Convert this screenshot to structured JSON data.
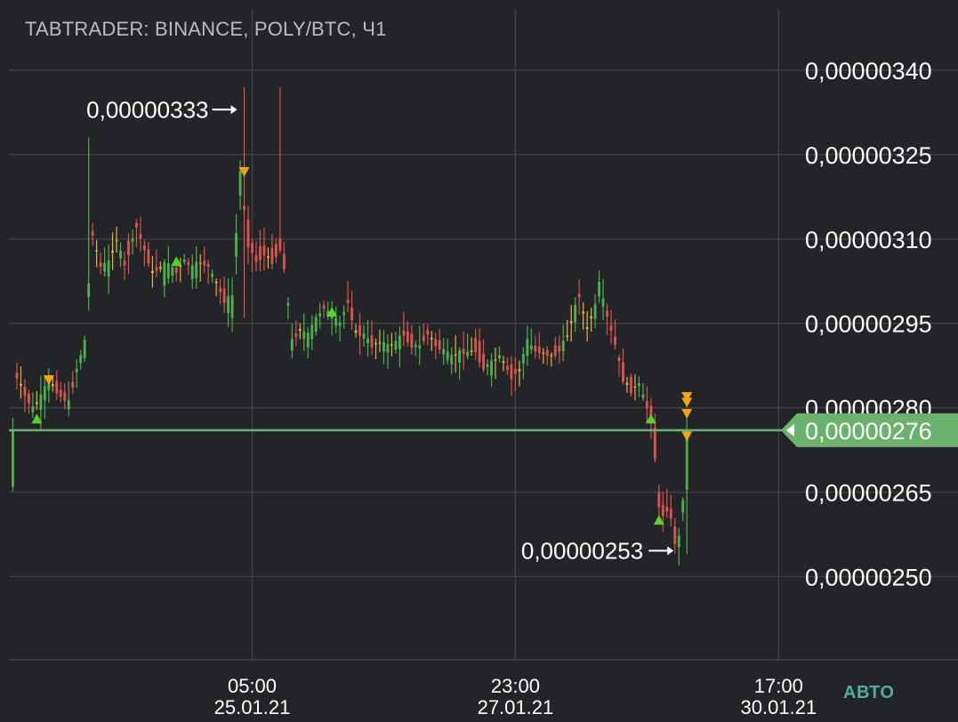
{
  "header": {
    "title": "TABTRADER: BINANCE, POLY/BTC, Ч1"
  },
  "controls": {
    "auto_label": "АВТО"
  },
  "colors": {
    "background": "#232427",
    "grid": "#3f4146",
    "up": "#4caf50",
    "down": "#d9534f",
    "neutral": "#e3b341",
    "current_price_line": "#6bb26e",
    "buy_marker": "#55d12a",
    "sell_marker": "#f4a20b",
    "axis_text": "#ffffff"
  },
  "chart_data": {
    "type": "candlestick",
    "exchange": "BINANCE",
    "pair": "POLY/BTC",
    "interval": "Ч1",
    "y_ticks": [
      "0,00000340",
      "0,00000325",
      "0,00000310",
      "0,00000295",
      "0,00000280",
      "0,00000265",
      "0,00000250"
    ],
    "y_tick_values": [
      340,
      325,
      310,
      295,
      280,
      265,
      250
    ],
    "y_unit_scale": "1e-8",
    "ylim": [
      238,
      352
    ],
    "x_ticks": [
      {
        "time": "05:00",
        "date": "25.01.21",
        "hour_index": 83
      },
      {
        "time": "23:00",
        "date": "27.01.21",
        "hour_index": 149
      },
      {
        "time": "17:00",
        "date": "30.01.21",
        "hour_index": 215
      }
    ],
    "xlim": [
      22,
      235
    ],
    "current_price": {
      "label": "0,00000276",
      "value": 276
    },
    "high_annotation": {
      "label": "0,00000333",
      "value": 333,
      "hour_index": 81
    },
    "low_annotation": {
      "label": "0,00000253",
      "value": 253,
      "hour_index": 190
    },
    "buy_signals": [
      {
        "hour_index": 29,
        "value": 278
      },
      {
        "hour_index": 64,
        "value": 306
      },
      {
        "hour_index": 103,
        "value": 297
      },
      {
        "hour_index": 183,
        "value": 278
      },
      {
        "hour_index": 185,
        "value": 260
      }
    ],
    "sell_signals": [
      {
        "hour_index": 32,
        "value": 285
      },
      {
        "hour_index": 81,
        "value": 322
      },
      {
        "hour_index": 192,
        "value": 282
      },
      {
        "hour_index": 192,
        "value": 281
      },
      {
        "hour_index": 192,
        "value": 279
      },
      {
        "hour_index": 192,
        "value": 275
      }
    ],
    "anchors": [
      [
        24,
        287,
        285
      ],
      [
        26,
        284,
        282
      ],
      [
        28,
        280,
        280
      ],
      [
        30,
        281,
        282
      ],
      [
        32,
        284,
        285
      ],
      [
        35,
        283,
        282
      ],
      [
        37,
        281,
        281
      ],
      [
        39,
        286,
        287
      ],
      [
        41,
        289,
        292
      ],
      [
        42,
        300,
        302
      ],
      [
        43,
        310,
        311
      ],
      [
        45,
        306,
        305
      ],
      [
        47,
        304,
        306
      ],
      [
        49,
        309,
        310
      ],
      [
        51,
        307,
        305
      ],
      [
        54,
        313,
        312
      ],
      [
        56,
        309,
        308
      ],
      [
        58,
        305,
        304
      ],
      [
        60,
        304,
        305
      ],
      [
        62,
        302,
        306
      ],
      [
        64,
        305,
        304
      ],
      [
        66,
        307,
        306
      ],
      [
        68,
        304,
        305
      ],
      [
        70,
        305,
        306
      ],
      [
        72,
        306,
        305
      ],
      [
        74,
        303,
        302
      ],
      [
        76,
        300,
        299
      ],
      [
        78,
        296,
        300
      ],
      [
        80,
        318,
        322
      ],
      [
        82,
        312,
        309
      ],
      [
        84,
        307,
        306
      ],
      [
        86,
        309,
        307
      ],
      [
        88,
        307,
        306
      ],
      [
        90,
        310,
        308
      ],
      [
        91,
        306,
        305
      ],
      [
        93,
        291,
        292
      ],
      [
        95,
        293,
        294
      ],
      [
        97,
        292,
        293
      ],
      [
        99,
        294,
        296
      ],
      [
        101,
        297,
        298
      ],
      [
        103,
        297,
        296
      ],
      [
        105,
        295,
        295
      ],
      [
        107,
        298,
        299
      ],
      [
        109,
        295,
        293
      ],
      [
        111,
        293,
        293
      ],
      [
        113,
        292,
        291
      ],
      [
        115,
        290,
        292
      ],
      [
        117,
        291,
        291
      ],
      [
        119,
        290,
        292
      ],
      [
        121,
        293,
        293
      ],
      [
        123,
        292,
        291
      ],
      [
        125,
        291,
        291
      ],
      [
        127,
        294,
        293
      ],
      [
        129,
        292,
        291
      ],
      [
        131,
        291,
        290
      ],
      [
        133,
        289,
        289
      ],
      [
        135,
        289,
        290
      ],
      [
        137,
        289,
        290
      ],
      [
        139,
        292,
        290
      ],
      [
        141,
        289,
        287
      ],
      [
        143,
        287,
        288
      ],
      [
        145,
        290,
        289
      ],
      [
        148,
        288,
        285
      ],
      [
        150,
        286,
        287
      ],
      [
        152,
        290,
        292
      ],
      [
        154,
        291,
        290
      ],
      [
        156,
        289,
        290
      ],
      [
        158,
        290,
        289
      ],
      [
        160,
        291,
        290
      ],
      [
        162,
        292,
        293
      ],
      [
        164,
        296,
        298
      ],
      [
        165,
        299,
        300
      ],
      [
        167,
        295,
        294
      ],
      [
        169,
        297,
        298
      ],
      [
        170,
        301,
        302
      ],
      [
        172,
        298,
        296
      ],
      [
        174,
        293,
        291
      ],
      [
        176,
        287,
        285
      ],
      [
        178,
        284,
        283
      ],
      [
        180,
        285,
        284
      ],
      [
        181,
        283,
        282
      ],
      [
        182,
        281,
        280
      ],
      [
        183,
        279,
        278
      ],
      [
        184,
        276,
        271
      ],
      [
        185,
        266,
        262
      ],
      [
        186,
        262,
        261
      ],
      [
        187,
        261,
        262
      ],
      [
        188,
        263,
        260
      ],
      [
        189,
        258,
        256
      ],
      [
        190,
        256,
        257
      ],
      [
        191,
        260,
        264
      ],
      [
        192,
        266,
        276
      ]
    ]
  }
}
